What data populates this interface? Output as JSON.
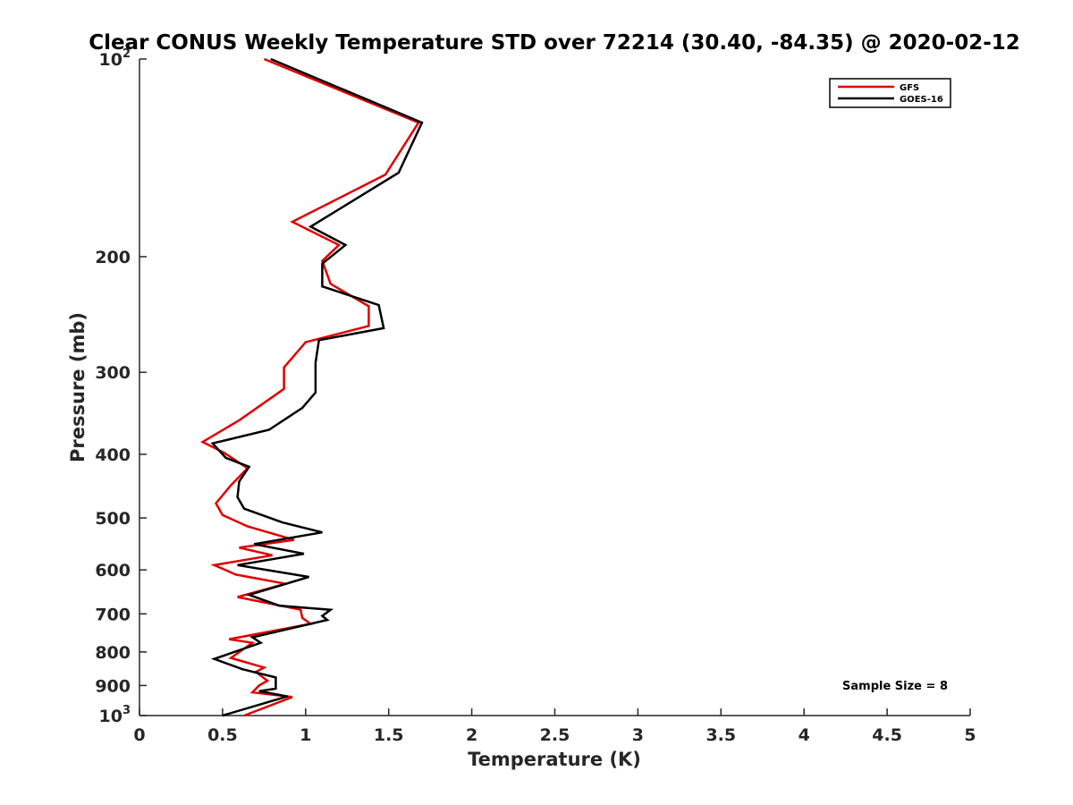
{
  "chart_data": {
    "type": "line",
    "title": "Clear CONUS Weekly Temperature STD over 72214 (30.40, -84.35) @ 2020-02-12",
    "xlabel": "Temperature (K)",
    "ylabel": "Pressure (mb)",
    "xlim": [
      0,
      5
    ],
    "ylim": [
      100,
      1000
    ],
    "y_scale": "log",
    "y_reversed": true,
    "grid": false,
    "x_ticks": [
      0,
      0.5,
      1,
      1.5,
      2,
      2.5,
      3,
      3.5,
      4,
      4.5,
      5
    ],
    "x_tick_labels": [
      "0",
      "0.5",
      "1",
      "1.5",
      "2",
      "2.5",
      "3",
      "3.5",
      "4",
      "4.5",
      "5"
    ],
    "y_ticks": [
      {
        "value": 100,
        "base": "10",
        "exp": "2"
      },
      {
        "value": 200,
        "label": "200"
      },
      {
        "value": 300,
        "label": "300"
      },
      {
        "value": 400,
        "label": "400"
      },
      {
        "value": 500,
        "label": "500"
      },
      {
        "value": 600,
        "label": "600"
      },
      {
        "value": 700,
        "label": "700"
      },
      {
        "value": 800,
        "label": "800"
      },
      {
        "value": 900,
        "label": "900"
      },
      {
        "value": 1000,
        "base": "10",
        "exp": "3"
      }
    ],
    "legend_position": "top-right",
    "series": [
      {
        "name": "GFS",
        "color": "#e00000",
        "points": [
          [
            0.75,
            100
          ],
          [
            1.68,
            125
          ],
          [
            1.48,
            150
          ],
          [
            0.92,
            177
          ],
          [
            1.2,
            192
          ],
          [
            1.1,
            203
          ],
          [
            1.15,
            220
          ],
          [
            1.38,
            238
          ],
          [
            1.38,
            255
          ],
          [
            1.0,
            270
          ],
          [
            0.87,
            295
          ],
          [
            0.87,
            318
          ],
          [
            0.6,
            355
          ],
          [
            0.38,
            383
          ],
          [
            0.51,
            398
          ],
          [
            0.65,
            420
          ],
          [
            0.55,
            446
          ],
          [
            0.46,
            475
          ],
          [
            0.5,
            495
          ],
          [
            0.65,
            515
          ],
          [
            0.93,
            540
          ],
          [
            0.6,
            555
          ],
          [
            0.8,
            570
          ],
          [
            0.45,
            590
          ],
          [
            0.58,
            610
          ],
          [
            0.88,
            630
          ],
          [
            0.59,
            660
          ],
          [
            0.97,
            690
          ],
          [
            0.98,
            710
          ],
          [
            1.03,
            725
          ],
          [
            0.54,
            765
          ],
          [
            0.68,
            775
          ],
          [
            0.55,
            817
          ],
          [
            0.75,
            845
          ],
          [
            0.7,
            858
          ],
          [
            0.77,
            885
          ],
          [
            0.72,
            900
          ],
          [
            0.68,
            922
          ],
          [
            0.92,
            937
          ],
          [
            0.63,
            1000
          ]
        ]
      },
      {
        "name": "GOES-16",
        "color": "#000000",
        "points": [
          [
            0.79,
            100
          ],
          [
            1.7,
            125
          ],
          [
            1.56,
            149
          ],
          [
            1.03,
            180
          ],
          [
            1.24,
            192
          ],
          [
            1.1,
            205
          ],
          [
            1.1,
            222
          ],
          [
            1.44,
            237
          ],
          [
            1.47,
            257
          ],
          [
            1.08,
            268
          ],
          [
            1.06,
            290
          ],
          [
            1.06,
            322
          ],
          [
            0.98,
            340
          ],
          [
            0.78,
            367
          ],
          [
            0.44,
            385
          ],
          [
            0.52,
            405
          ],
          [
            0.66,
            418
          ],
          [
            0.6,
            440
          ],
          [
            0.59,
            465
          ],
          [
            0.63,
            484
          ],
          [
            0.86,
            508
          ],
          [
            1.1,
            526
          ],
          [
            0.69,
            548
          ],
          [
            0.99,
            567
          ],
          [
            0.59,
            590
          ],
          [
            1.02,
            615
          ],
          [
            0.66,
            655
          ],
          [
            0.84,
            680
          ],
          [
            1.15,
            690
          ],
          [
            1.1,
            705
          ],
          [
            1.13,
            715
          ],
          [
            0.68,
            760
          ],
          [
            0.73,
            775
          ],
          [
            0.45,
            820
          ],
          [
            0.62,
            850
          ],
          [
            0.82,
            875
          ],
          [
            0.82,
            910
          ],
          [
            0.72,
            918
          ],
          [
            0.89,
            935
          ],
          [
            0.5,
            1000
          ]
        ]
      }
    ],
    "annotations": [
      "Sample Size = 8"
    ]
  },
  "colors": {
    "gfs": "#e00000",
    "goes": "#000000",
    "axis": "#262626"
  }
}
